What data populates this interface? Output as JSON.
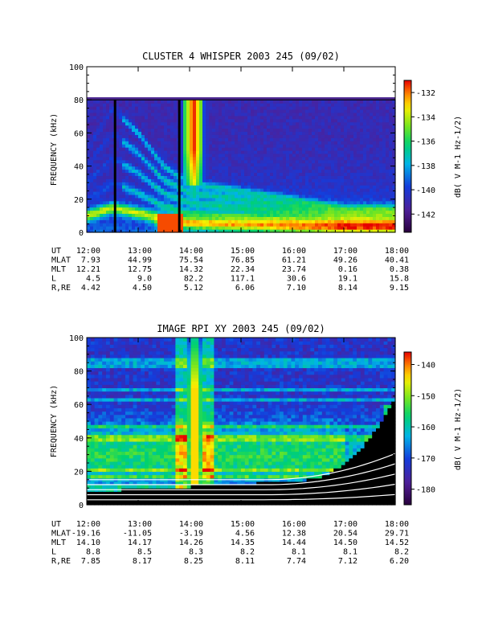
{
  "chart_data": [
    {
      "type": "heatmap",
      "title": "CLUSTER 4 WHISPER 2003 245 (09/02)",
      "ylabel": "FREQUENCY (kHz)",
      "ylim": [
        0,
        100
      ],
      "y_ticks": [
        "0",
        "20",
        "40",
        "60",
        "80",
        "100"
      ],
      "x_ticks": [
        "12:00",
        "13:00",
        "14:00",
        "15:00",
        "16:00",
        "17:00",
        "18:00"
      ],
      "x_hours": [
        12,
        13,
        14,
        15,
        16,
        17,
        18
      ],
      "data_ceiling_khz": 80,
      "colorbar": {
        "label": "dB( V M-1 Hz-1/2)",
        "ticks": [
          "-132",
          "-134",
          "-136",
          "-138",
          "-140",
          "-142"
        ],
        "tick_values": [
          -132,
          -134,
          -136,
          -138,
          -140,
          -142
        ],
        "range": [
          -143.5,
          -131
        ]
      },
      "ephemeris": [
        {
          "label": "UT",
          "values": [
            "12:00",
            "13:00",
            "14:00",
            "15:00",
            "16:00",
            "17:00",
            "18:00"
          ]
        },
        {
          "label": "MLAT",
          "values": [
            "7.93",
            "44.99",
            "75.54",
            "76.85",
            "61.21",
            "49.26",
            "40.41"
          ]
        },
        {
          "label": "MLT",
          "values": [
            "12.21",
            "12.75",
            "14.32",
            "22.34",
            "23.74",
            "0.16",
            "0.38"
          ]
        },
        {
          "label": "L",
          "values": [
            "4.5",
            "9.0",
            "82.2",
            "117.1",
            "30.6",
            "19.1",
            "15.8"
          ]
        },
        {
          "label": "R,RE",
          "values": [
            "4.42",
            "4.50",
            "5.12",
            "6.06",
            "7.10",
            "8.14",
            "9.15"
          ]
        }
      ],
      "bright_band_approx": {
        "x_hours": [
          12.0,
          12.5,
          13.0,
          13.5,
          14.0,
          15.0,
          16.0,
          17.0,
          18.0
        ],
        "y_khz": [
          10,
          15,
          12,
          8,
          6,
          5,
          4,
          3,
          3
        ]
      }
    },
    {
      "type": "heatmap",
      "title": "IMAGE RPI XY 2003 245 (09/02)",
      "ylabel": "FREQUENCY (kHz)",
      "ylim": [
        0,
        100
      ],
      "y_ticks": [
        "0",
        "20",
        "40",
        "60",
        "80",
        "100"
      ],
      "x_ticks": [
        "12:00",
        "13:00",
        "14:00",
        "15:00",
        "16:00",
        "17:00",
        "18:00"
      ],
      "x_hours": [
        12,
        13,
        14,
        15,
        16,
        17,
        18
      ],
      "colorbar": {
        "label": "dB( V M-1 Hz-1/2)",
        "ticks": [
          "-140",
          "-150",
          "-160",
          "-170",
          "-180"
        ],
        "tick_values": [
          -140,
          -150,
          -160,
          -170,
          -180
        ],
        "range": [
          -185,
          -136
        ]
      },
      "ephemeris": [
        {
          "label": "UT",
          "values": [
            "12:00",
            "13:00",
            "14:00",
            "15:00",
            "16:00",
            "17:00",
            "18:00"
          ]
        },
        {
          "label": "MLAT",
          "values": [
            "-19.16",
            "-11.05",
            "-3.19",
            "4.56",
            "12.38",
            "20.54",
            "29.71"
          ]
        },
        {
          "label": "MLT",
          "values": [
            "14.10",
            "14.17",
            "14.26",
            "14.35",
            "14.44",
            "14.50",
            "14.52"
          ]
        },
        {
          "label": "L",
          "values": [
            "8.8",
            "8.5",
            "8.3",
            "8.2",
            "8.1",
            "8.1",
            "8.2"
          ]
        },
        {
          "label": "R,RE",
          "values": [
            "7.85",
            "8.17",
            "8.25",
            "8.11",
            "7.74",
            "7.12",
            "6.20"
          ]
        }
      ]
    }
  ]
}
